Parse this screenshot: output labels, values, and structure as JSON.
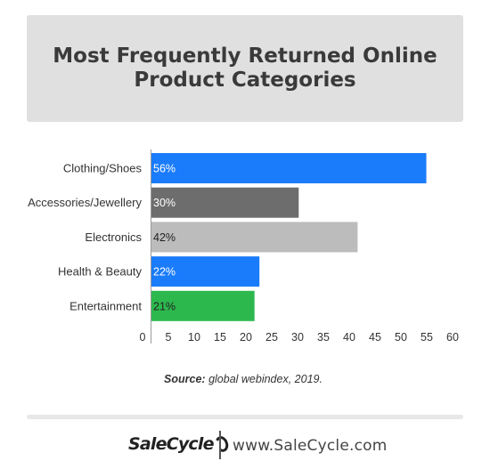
{
  "chart_data": {
    "type": "bar",
    "orientation": "horizontal",
    "title": "Most Frequently Returned Online Product Categories",
    "categories": [
      "Clothing/Shoes",
      "Accessories/Jewellery",
      "Electronics",
      "Health & Beauty",
      "Entertainment"
    ],
    "values": [
      56,
      30,
      42,
      22,
      21
    ],
    "data_labels": [
      "56%",
      "30%",
      "42%",
      "22%",
      "21%"
    ],
    "bar_colors": [
      "#1a7cfa",
      "#6d6d6d",
      "#bcbcbc",
      "#1a7cfa",
      "#2db84e"
    ],
    "label_colors": [
      "#ffffff",
      "#ffffff",
      "#222222",
      "#ffffff",
      "#222222"
    ],
    "x_ticks": [
      0,
      5,
      10,
      15,
      20,
      25,
      30,
      35,
      40,
      45,
      50,
      55,
      60
    ],
    "tick_labels": [
      "0",
      "5",
      "10",
      "15",
      "20",
      "25",
      "30",
      "35",
      "40",
      "45",
      "50",
      "55",
      "60"
    ],
    "xlim": [
      0,
      60
    ],
    "bar_extent_note_omitted": true,
    "grid": false
  },
  "source": {
    "label": "Source:",
    "text": " global webindex, 2019."
  },
  "footer": {
    "logo_text": "SaleCycle",
    "website": "www.SaleCycle.com"
  }
}
